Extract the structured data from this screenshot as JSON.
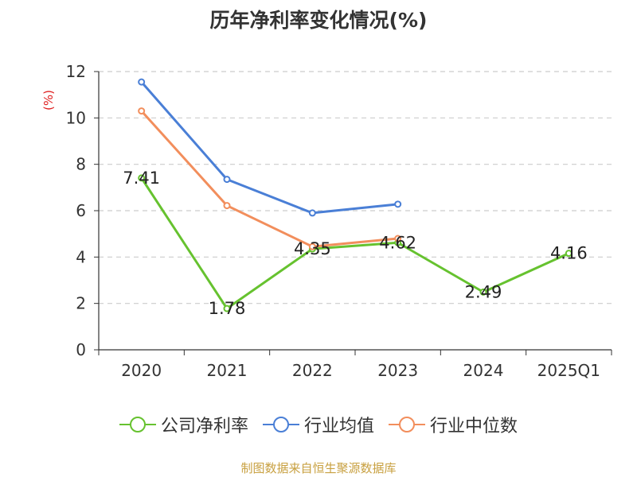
{
  "chart_data": {
    "type": "line",
    "title": "历年净利率变化情况(%)",
    "ylabel": "(%)",
    "xlabel": "",
    "categories": [
      "2020",
      "2021",
      "2022",
      "2023",
      "2024",
      "2025Q1"
    ],
    "ylim": [
      0,
      12
    ],
    "yticks": [
      0,
      2,
      4,
      6,
      8,
      10,
      12
    ],
    "grid": true,
    "legend_position": "bottom",
    "series": [
      {
        "name": "公司净利率",
        "color": "#66c22f",
        "values": [
          7.41,
          1.78,
          4.35,
          4.62,
          2.49,
          4.16
        ],
        "labels": [
          "7.41",
          "1.78",
          "4.35",
          "4.62",
          "2.49",
          "4.16"
        ]
      },
      {
        "name": "行业均值",
        "color": "#4a7fd6",
        "values": [
          11.55,
          7.35,
          5.9,
          6.28,
          null,
          null
        ]
      },
      {
        "name": "行业中位数",
        "color": "#f28e5c",
        "values": [
          10.3,
          6.22,
          4.45,
          4.8,
          null,
          null
        ]
      }
    ]
  },
  "source": "制图数据来自恒生聚源数据库"
}
